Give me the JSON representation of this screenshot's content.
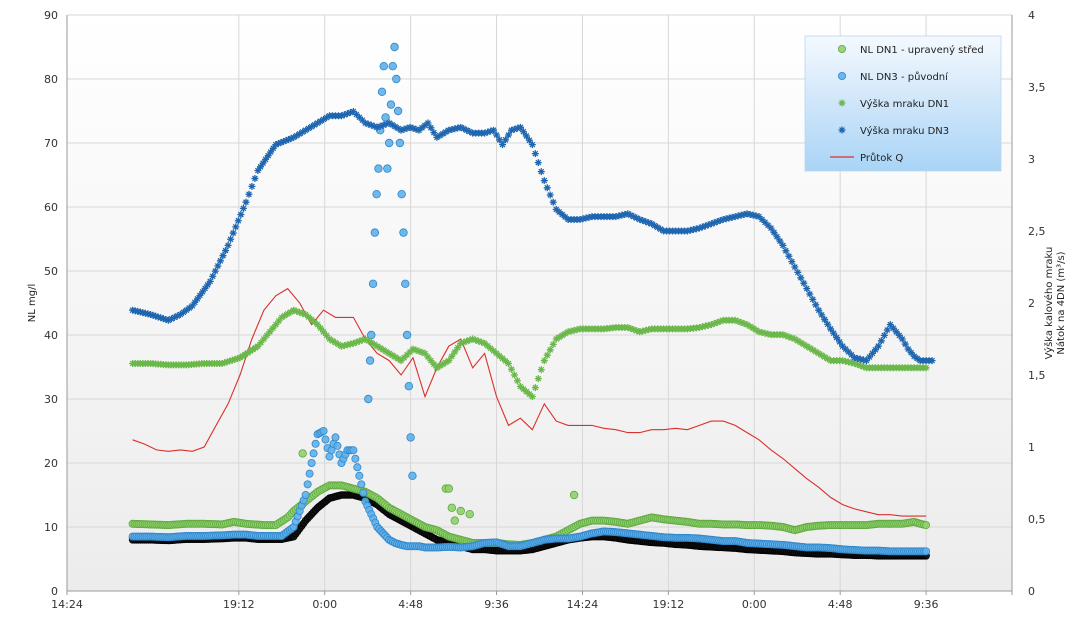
{
  "chart_data": {
    "type": "scatter",
    "title": "",
    "x_axis": {
      "unit": "hours",
      "min": 0,
      "max": 158.4,
      "tick_values": [
        0,
        28.8,
        43.2,
        57.6,
        72,
        86.4,
        100.8,
        115.2,
        129.6,
        144,
        158.4
      ],
      "tick_labels": [
        "14:24",
        "19:12",
        "0:00",
        "4:48",
        "9:36",
        "14:24",
        "19:12",
        "0:00",
        "4:48",
        "9:36",
        ""
      ],
      "grid": true
    },
    "y_left": {
      "label": "NL mg/l",
      "min": 0,
      "max": 90,
      "tick_values": [
        0,
        10,
        20,
        30,
        40,
        50,
        60,
        70,
        80,
        90
      ],
      "tick_labels": [
        "0",
        "10",
        "20",
        "30",
        "40",
        "50",
        "60",
        "70",
        "80",
        "90"
      ],
      "grid": true
    },
    "y_right": {
      "label_line1": "Výška kalového mraku",
      "label_line2": "Nátok na 4DN (m³/s)",
      "min": 0,
      "max": 4,
      "tick_values": [
        0,
        0.5,
        1,
        1.5,
        2,
        2.5,
        3,
        3.5,
        4
      ],
      "tick_labels": [
        "0",
        "0,5",
        "1",
        "1,5",
        "2",
        "2,5",
        "3",
        "3,5",
        "4"
      ]
    },
    "legend": {
      "position": "top-right",
      "entries": [
        {
          "key": "nl_dn1",
          "label": "NL DN1 - upravený střed",
          "marker": "circle",
          "color": "#8fd16a"
        },
        {
          "key": "nl_dn3",
          "label": "NL DN3 - původní",
          "marker": "circle",
          "color": "#5fb0ea"
        },
        {
          "key": "vyska_dn1",
          "label": "Výška mraku DN1",
          "marker": "star",
          "color": "#6ab84a"
        },
        {
          "key": "vyska_dn3",
          "label": "Výška mraku DN3",
          "marker": "star",
          "color": "#1f66b0"
        },
        {
          "key": "prutok",
          "label": "Průtok Q",
          "marker": "line",
          "color": "#d9302b"
        }
      ]
    },
    "series": [
      {
        "key": "vyska_dn3",
        "name": "Výška mraku DN3",
        "axis": "right",
        "color": "#1f66b0",
        "x": [
          11,
          14,
          17,
          19,
          21,
          24,
          27,
          30,
          32,
          35,
          38,
          40,
          42,
          44,
          46,
          48,
          50,
          52,
          54,
          56,
          57.5,
          59,
          60.5,
          62,
          64,
          66,
          68,
          70,
          71.5,
          73,
          74.5,
          76,
          78,
          80,
          82,
          84,
          86,
          88,
          90,
          92,
          94,
          96,
          98,
          100,
          102,
          104,
          106,
          108,
          110,
          112,
          114,
          116,
          118,
          120,
          122,
          124,
          126,
          128,
          130,
          132,
          134,
          136,
          138,
          139,
          140,
          141,
          142,
          143,
          144,
          145
        ],
        "y": [
          1.95,
          1.92,
          1.88,
          1.92,
          1.98,
          2.15,
          2.4,
          2.7,
          2.92,
          3.1,
          3.15,
          3.2,
          3.25,
          3.3,
          3.3,
          3.33,
          3.25,
          3.22,
          3.25,
          3.2,
          3.22,
          3.2,
          3.25,
          3.15,
          3.2,
          3.22,
          3.18,
          3.18,
          3.2,
          3.1,
          3.2,
          3.22,
          3.1,
          2.85,
          2.65,
          2.58,
          2.58,
          2.6,
          2.6,
          2.6,
          2.62,
          2.58,
          2.55,
          2.5,
          2.5,
          2.5,
          2.52,
          2.55,
          2.58,
          2.6,
          2.62,
          2.6,
          2.52,
          2.4,
          2.25,
          2.1,
          1.95,
          1.82,
          1.7,
          1.62,
          1.6,
          1.7,
          1.85,
          1.8,
          1.75,
          1.68,
          1.63,
          1.6,
          1.6,
          1.6
        ]
      },
      {
        "key": "vyska_dn1",
        "name": "Výška mraku DN1",
        "axis": "right",
        "color": "#6ab84a",
        "x": [
          11,
          14,
          17,
          20,
          23,
          26,
          29,
          32,
          34,
          36,
          38,
          40,
          42,
          44,
          46,
          48,
          50,
          52,
          54,
          56,
          58,
          60,
          62,
          64,
          66,
          68,
          70,
          72,
          74,
          76,
          78,
          80,
          82,
          84,
          86,
          88,
          90,
          92,
          94,
          96,
          98,
          100,
          102,
          104,
          106,
          108,
          110,
          112,
          114,
          116,
          118,
          120,
          122,
          124,
          126,
          128,
          130,
          132,
          134,
          136,
          138,
          140,
          142,
          144
        ],
        "y": [
          1.58,
          1.58,
          1.57,
          1.57,
          1.58,
          1.58,
          1.62,
          1.7,
          1.8,
          1.9,
          1.95,
          1.92,
          1.85,
          1.75,
          1.7,
          1.72,
          1.75,
          1.7,
          1.65,
          1.6,
          1.68,
          1.65,
          1.55,
          1.6,
          1.72,
          1.75,
          1.72,
          1.65,
          1.58,
          1.42,
          1.35,
          1.6,
          1.75,
          1.8,
          1.82,
          1.82,
          1.82,
          1.83,
          1.83,
          1.8,
          1.82,
          1.82,
          1.82,
          1.82,
          1.83,
          1.85,
          1.88,
          1.88,
          1.85,
          1.8,
          1.78,
          1.78,
          1.75,
          1.7,
          1.65,
          1.6,
          1.6,
          1.58,
          1.55,
          1.55,
          1.55,
          1.55,
          1.55,
          1.55
        ]
      },
      {
        "key": "prutok",
        "name": "Průtok Q",
        "axis": "right",
        "color": "#d9302b",
        "render": "line",
        "x": [
          11,
          13,
          15,
          17,
          19,
          21,
          23,
          25,
          27,
          29,
          31,
          33,
          35,
          37,
          39,
          41,
          43,
          45,
          47,
          48,
          50,
          52,
          54,
          56,
          58,
          60,
          62,
          64,
          66,
          68,
          70,
          72,
          74,
          76,
          78,
          80,
          82,
          84,
          86,
          88,
          90,
          92,
          94,
          96,
          98,
          100,
          102,
          104,
          106,
          108,
          110,
          112,
          114,
          116,
          118,
          120,
          122,
          124,
          126,
          128,
          130,
          132,
          134,
          136,
          138,
          140,
          142,
          144
        ],
        "y": [
          1.05,
          1.02,
          0.98,
          0.97,
          0.98,
          0.97,
          1.0,
          1.15,
          1.3,
          1.5,
          1.75,
          1.95,
          2.05,
          2.1,
          2.0,
          1.85,
          1.95,
          1.9,
          1.9,
          1.9,
          1.75,
          1.65,
          1.6,
          1.5,
          1.62,
          1.35,
          1.55,
          1.7,
          1.75,
          1.55,
          1.65,
          1.35,
          1.15,
          1.2,
          1.12,
          1.3,
          1.18,
          1.15,
          1.15,
          1.15,
          1.13,
          1.12,
          1.1,
          1.1,
          1.12,
          1.12,
          1.13,
          1.12,
          1.15,
          1.18,
          1.18,
          1.15,
          1.1,
          1.05,
          0.98,
          0.92,
          0.85,
          0.78,
          0.72,
          0.65,
          0.6,
          0.57,
          0.55,
          0.53,
          0.53,
          0.52,
          0.52,
          0.52
        ]
      },
      {
        "key": "nl_dn1",
        "name": "NL DN1 - upravený střed",
        "axis": "left",
        "color": "#8fd16a",
        "x": [
          11,
          14,
          17,
          20,
          23,
          26,
          28,
          30,
          33,
          35,
          37,
          38,
          40,
          42,
          44,
          46,
          48,
          50,
          52,
          54,
          56,
          58,
          60,
          62,
          64,
          66,
          68,
          70,
          72,
          74,
          76,
          78,
          80,
          82,
          84,
          86,
          88,
          90,
          92,
          94,
          96,
          98,
          100,
          102,
          104,
          106,
          108,
          110,
          112,
          114,
          116,
          118,
          120,
          122,
          124,
          126,
          128,
          130,
          132,
          134,
          136,
          138,
          140,
          142,
          143,
          144
        ],
        "y": [
          10.5,
          10.4,
          10.3,
          10.5,
          10.5,
          10.4,
          10.8,
          10.5,
          10.3,
          10.3,
          11.5,
          12.5,
          14,
          15.5,
          16.5,
          16.5,
          16,
          15.5,
          14.5,
          13,
          12,
          11,
          10,
          9.5,
          8.5,
          8,
          7.5,
          7.5,
          7.5,
          7.3,
          7.2,
          7.5,
          8,
          8.5,
          9.5,
          10.5,
          11,
          11,
          10.8,
          10.5,
          11,
          11.5,
          11.2,
          11,
          10.8,
          10.5,
          10.5,
          10.4,
          10.4,
          10.3,
          10.3,
          10.2,
          10,
          9.5,
          10,
          10.2,
          10.3,
          10.3,
          10.3,
          10.3,
          10.5,
          10.5,
          10.5,
          10.8,
          10.5,
          10.3
        ]
      },
      {
        "key": "nl_dn1_outliers",
        "name": "NL DN1 - upravený střed",
        "axis": "left",
        "color": "#8fd16a",
        "x": [
          39.5,
          63.5,
          64,
          64.5,
          65,
          66,
          67.5,
          85
        ],
        "y": [
          21.5,
          16,
          16,
          13,
          11,
          12.5,
          12,
          15
        ]
      },
      {
        "key": "nl_dn3",
        "name": "NL DN3 - původní",
        "axis": "left",
        "color": "#5fb0ea",
        "x": [
          11,
          14,
          17,
          20,
          23,
          26,
          28,
          30,
          32,
          34,
          36,
          38,
          40,
          41,
          42,
          43,
          44,
          45,
          46,
          47,
          48,
          49,
          50,
          51,
          52,
          53,
          54,
          55,
          56,
          57,
          58,
          59,
          60,
          62,
          64,
          66,
          68,
          70,
          72,
          74,
          76,
          78,
          80,
          82,
          84,
          86,
          88,
          90,
          92,
          94,
          96,
          98,
          100,
          102,
          104,
          106,
          108,
          110,
          112,
          114,
          116,
          118,
          120,
          122,
          124,
          126,
          128,
          130,
          132,
          134,
          136,
          138,
          140,
          142,
          144
        ],
        "y": [
          8.5,
          8.5,
          8.4,
          8.6,
          8.6,
          8.7,
          8.8,
          8.8,
          8.6,
          8.6,
          8.6,
          10,
          15,
          20,
          24.5,
          25,
          21,
          24,
          20,
          22,
          22,
          18,
          14,
          12,
          10,
          9,
          8,
          7.5,
          7.2,
          7,
          7,
          7,
          6.8,
          6.8,
          6.9,
          6.8,
          7,
          7.5,
          7.6,
          7,
          7,
          7.5,
          8,
          8.2,
          8.2,
          8.5,
          9,
          9.3,
          9.2,
          9,
          8.8,
          8.6,
          8.4,
          8.3,
          8.3,
          8.2,
          8,
          7.8,
          7.8,
          7.5,
          7.4,
          7.3,
          7.2,
          7,
          6.8,
          6.8,
          6.7,
          6.5,
          6.4,
          6.3,
          6.3,
          6.2,
          6.2,
          6.2,
          6.2
        ]
      },
      {
        "key": "nl_dn3_spike",
        "name": "NL DN3 - původní",
        "axis": "left",
        "color": "#5fb0ea",
        "x": [
          50.5,
          50.8,
          51,
          51.3,
          51.6,
          51.9,
          52.2,
          52.5,
          52.8,
          53.1,
          53.4,
          53.7,
          54,
          54.3,
          54.6,
          54.9,
          55.2,
          55.5,
          55.8,
          56.1,
          56.4,
          56.7,
          57,
          57.3,
          57.6,
          57.9
        ],
        "y": [
          30,
          36,
          40,
          48,
          56,
          62,
          66,
          72,
          78,
          82,
          74,
          66,
          70,
          76,
          82,
          85,
          80,
          75,
          70,
          62,
          56,
          48,
          40,
          32,
          24,
          18
        ]
      },
      {
        "key": "nl_dn3_dark",
        "name": "",
        "axis": "left",
        "color": "#111111",
        "x": [
          11,
          14,
          17,
          20,
          23,
          26,
          28,
          30,
          32,
          34,
          36,
          38,
          40,
          42,
          44,
          46,
          48,
          50,
          52,
          54,
          56,
          58,
          60,
          62,
          64,
          66,
          68,
          70,
          72,
          74,
          76,
          78,
          80,
          82,
          84,
          86,
          88,
          90,
          92,
          94,
          96,
          98,
          100,
          102,
          104,
          106,
          108,
          110,
          112,
          114,
          116,
          118,
          120,
          122,
          124,
          126,
          128,
          130,
          132,
          134,
          136,
          138,
          140,
          142,
          144
        ],
        "y": [
          8,
          8,
          7.9,
          8.1,
          8.1,
          8.2,
          8.3,
          8.3,
          8.1,
          8.1,
          8.1,
          8.5,
          11,
          13,
          14.5,
          15,
          15,
          14.5,
          13.5,
          12,
          11,
          10,
          9,
          8,
          7.5,
          7,
          6.5,
          6.5,
          6.3,
          6.3,
          6.3,
          6.5,
          7,
          7.5,
          8,
          8.3,
          8.5,
          8.5,
          8.3,
          8,
          7.8,
          7.6,
          7.5,
          7.3,
          7.2,
          7,
          6.9,
          6.8,
          6.7,
          6.5,
          6.4,
          6.3,
          6.2,
          6,
          5.9,
          5.8,
          5.8,
          5.7,
          5.6,
          5.6,
          5.5,
          5.5,
          5.5,
          5.5,
          5.5
        ]
      }
    ]
  }
}
